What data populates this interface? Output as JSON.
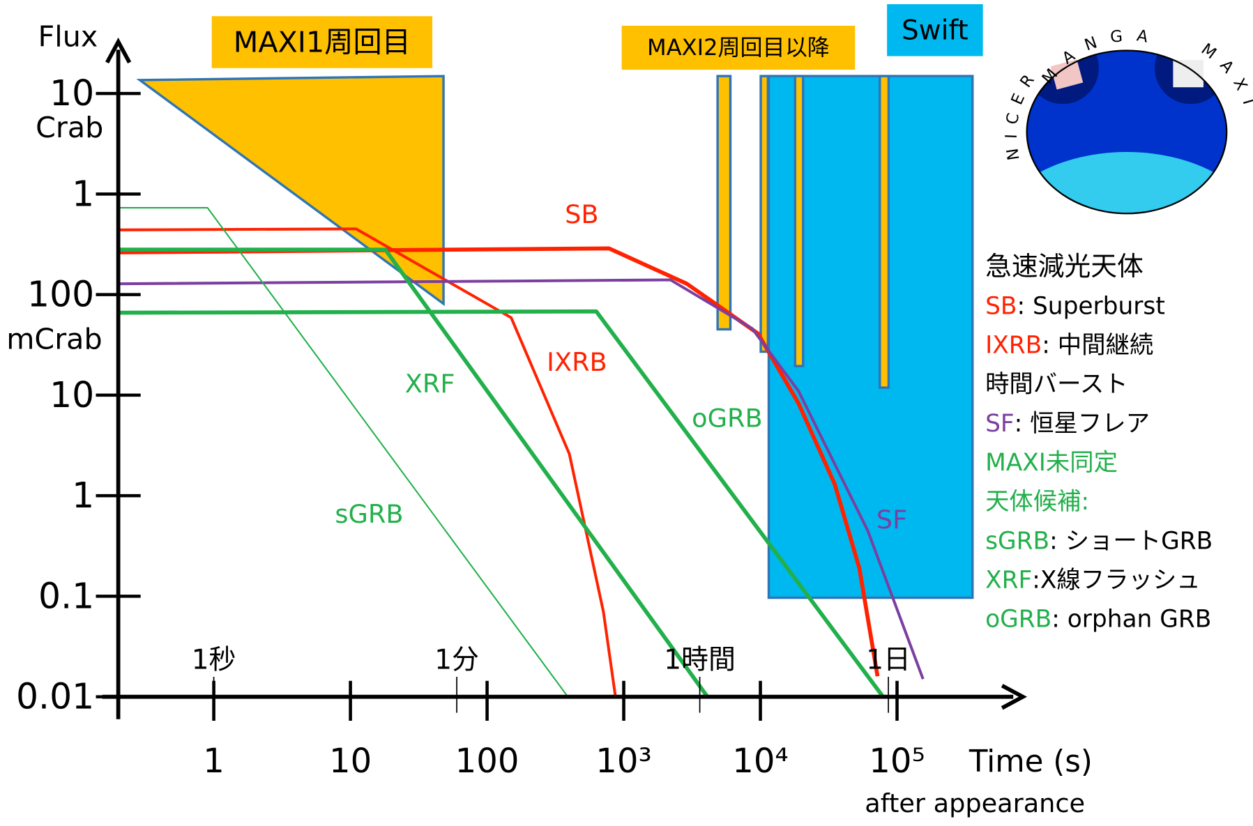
{
  "chart_data": {
    "type": "line",
    "log_x": true,
    "log_y": true,
    "y_label": "Flux",
    "y_unit_upper": "Crab",
    "y_unit_lower": "mCrab",
    "x_label": "Time (s)",
    "x_sublabel": "after appearance",
    "xlim": [
      0.2,
      800000
    ],
    "xticks": [
      1,
      10,
      100,
      {
        "value": 1000,
        "label": "10³"
      },
      {
        "value": 10000,
        "label": "10⁴"
      },
      {
        "value": 100000,
        "label": "10⁵"
      }
    ],
    "time_marks": [
      {
        "value": 1,
        "label": "1秒"
      },
      {
        "value": 60,
        "label": "1分"
      },
      {
        "value": 3600,
        "label": "1時間"
      },
      {
        "value": 86400,
        "label": "1日"
      }
    ],
    "ylim": [
      0.01,
      40000
    ],
    "yticks": [
      {
        "value": 10000,
        "label": "10"
      },
      {
        "value": 1000,
        "label": "1"
      },
      100,
      10,
      1,
      0.1,
      0.01
    ],
    "series": [
      {
        "name": "SB",
        "color": "#ff2200",
        "x": [
          0.2,
          780,
          2900,
          9600,
          19000,
          35000,
          53000,
          72000
        ],
        "values": [
          263,
          288,
          128,
          41,
          8.3,
          1.3,
          0.19,
          0.016
        ]
      },
      {
        "name": "IXRB",
        "color": "#ff2200",
        "x": [
          0.2,
          11,
          150,
          400,
          710,
          870
        ],
        "values": [
          440,
          450,
          59,
          2.6,
          0.07,
          0.01
        ]
      },
      {
        "name": "SF",
        "color": "#7b3fa0",
        "x": [
          0.2,
          2200,
          8700,
          19000,
          61000,
          155000
        ],
        "values": [
          128,
          140,
          46,
          11,
          0.45,
          0.015
        ]
      },
      {
        "name": "XRF",
        "color": "#22b04b",
        "x": [
          0.2,
          18,
          4100
        ],
        "values": [
          280,
          280,
          0.01
        ]
      },
      {
        "name": "oGRB",
        "color": "#22b04b",
        "x": [
          0.2,
          630,
          79000
        ],
        "values": [
          66,
          68,
          0.01
        ]
      },
      {
        "name": "sGRB",
        "color": "#22b04b",
        "x": [
          0.2,
          0.9,
          390
        ],
        "values": [
          730,
          730,
          0.01
        ]
      }
    ],
    "boxes": {
      "maxi1": "MAXI1周回目",
      "maxi2": "MAXI2周回目以降",
      "swift": "Swift"
    },
    "logo": {
      "top": "MANGA",
      "left": "NICER",
      "right": "MAXI"
    },
    "legend": [
      [
        {
          "text": "急速減光天体",
          "color": "#000000"
        }
      ],
      [
        {
          "text": "SB",
          "color": "#ff2200"
        },
        {
          "text": ": Superburst",
          "color": "#000000"
        }
      ],
      [
        {
          "text": "IXRB",
          "color": "#ff2200"
        },
        {
          "text": ": 中間継続",
          "color": "#000000"
        }
      ],
      [
        {
          "text": "時間バースト",
          "color": "#000000"
        }
      ],
      [
        {
          "text": "SF",
          "color": "#7b3fa0"
        },
        {
          "text": ": 恒星フレア",
          "color": "#000000"
        }
      ],
      [
        {
          "text": "MAXI未同定",
          "color": "#22b04b"
        }
      ],
      [
        {
          "text": "天体候補:",
          "color": "#22b04b"
        }
      ],
      [
        {
          "text": "sGRB",
          "color": "#22b04b"
        },
        {
          "text": ": ショートGRB",
          "color": "#000000"
        }
      ],
      [
        {
          "text": "XRF",
          "color": "#22b04b"
        },
        {
          "text": ":X線フラッシュ",
          "color": "#000000"
        }
      ],
      [
        {
          "text": "oGRB",
          "color": "#22b04b"
        },
        {
          "text": ": orphan GRB",
          "color": "#000000"
        }
      ]
    ]
  }
}
